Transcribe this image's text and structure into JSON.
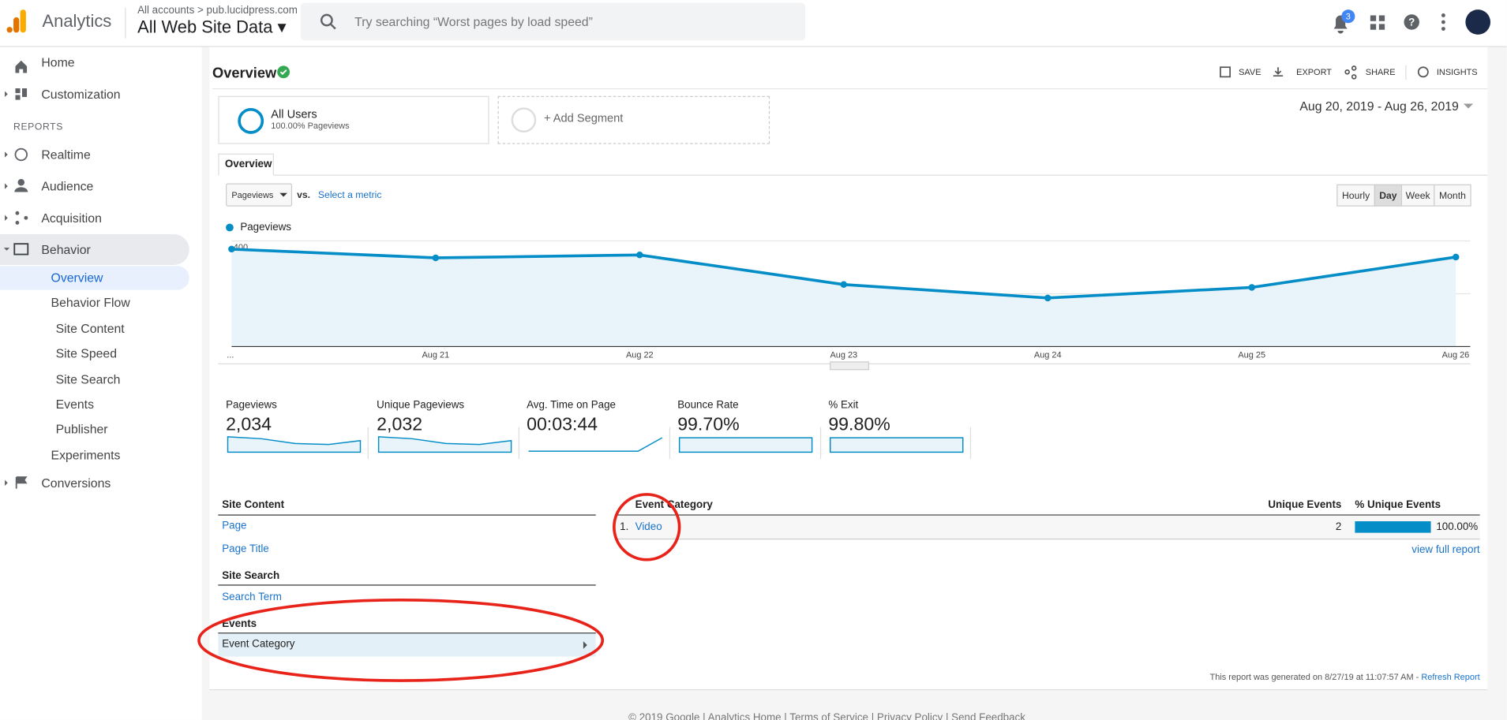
{
  "header": {
    "product": "Analytics",
    "breadcrumb": "All accounts",
    "property": "pub.lucidpress.com",
    "view": "All Web Site Data",
    "search_placeholder": "Try searching “Worst pages by load speed”",
    "notification_count": "3"
  },
  "sidebar": {
    "items": [
      "Home",
      "Customization"
    ],
    "section": "REPORTS",
    "reports": [
      "Realtime",
      "Audience",
      "Acquisition",
      "Behavior"
    ],
    "behavior_sub": [
      "Overview",
      "Behavior Flow",
      "Site Content",
      "Site Speed",
      "Site Search",
      "Events",
      "Publisher",
      "Experiments"
    ],
    "last": "Conversions"
  },
  "page": {
    "title": "Overview",
    "actions": [
      "SAVE",
      "EXPORT",
      "SHARE",
      "INSIGHTS"
    ],
    "segment": {
      "name": "All Users",
      "detail": "100.00% Pageviews"
    },
    "add_segment": "+ Add Segment",
    "date_range": "Aug 20, 2019 - Aug 26, 2019",
    "tab": "Overview",
    "metric": "Pageviews",
    "vs": "vs.",
    "select_metric": "Select a metric",
    "granularity": [
      "Hourly",
      "Day",
      "Week",
      "Month"
    ]
  },
  "chart": {
    "type": "line",
    "categories": [
      "...",
      "Aug 21",
      "Aug 22",
      "Aug 23",
      "Aug 24",
      "Aug 25",
      "Aug 26"
    ],
    "series": [
      {
        "name": "Pageviews",
        "color": "#058dc7",
        "values": [
          369,
          336,
          347,
          235,
          184,
          224,
          339
        ]
      }
    ],
    "ylim": [
      0,
      400
    ],
    "yticks": [
      200,
      400
    ],
    "grid": true
  },
  "scorecards": [
    {
      "label": "Pageviews",
      "value": "2,034"
    },
    {
      "label": "Unique Pageviews",
      "value": "2,032"
    },
    {
      "label": "Avg. Time on Page",
      "value": "00:03:44"
    },
    {
      "label": "Bounce Rate",
      "value": "99.70%"
    },
    {
      "label": "% Exit",
      "value": "99.80%"
    }
  ],
  "left_table": {
    "sections": [
      {
        "title": "Site Content",
        "links": [
          "Page",
          "Page Title"
        ]
      },
      {
        "title": "Site Search",
        "links": [
          "Search Term"
        ]
      },
      {
        "title": "Events",
        "links": [
          "Event Category"
        ]
      }
    ]
  },
  "table": {
    "columns": [
      "Event Category",
      "Unique Events",
      "% Unique Events"
    ],
    "rows": [
      [
        "1.",
        "Video",
        "2",
        "100.00%"
      ]
    ],
    "full_report": "view full report"
  },
  "footer": {
    "generated": "This report was generated on 8/27/19 at 11:07:57 AM -",
    "refresh": "Refresh Report",
    "links": "© 2019 Google | Analytics Home | Terms of Service | Privacy Policy | Send Feedback"
  }
}
